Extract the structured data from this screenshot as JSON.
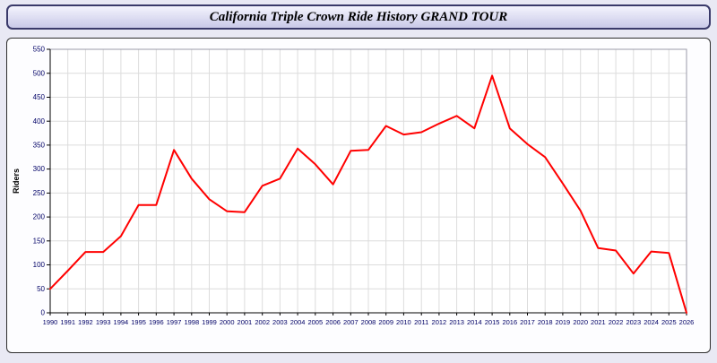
{
  "header": {
    "title": "California Triple Crown Ride History GRAND TOUR"
  },
  "colors": {
    "page_bg": "#e9e9f4",
    "line": "#ff0000",
    "grid": "#dcdcdc",
    "axis": "#000000",
    "tick_label": "#000066",
    "plot_bg": "#ffffff"
  },
  "chart_data": {
    "type": "line",
    "title": "California Triple Crown Ride History GRAND TOUR",
    "xlabel": "",
    "ylabel": "Riders",
    "ylim": [
      0,
      550
    ],
    "ytick_step": 50,
    "grid": true,
    "legend": "none",
    "line_color": "#ff0000",
    "categories": [
      "1990",
      "1991",
      "1992",
      "1993",
      "1994",
      "1995",
      "1996",
      "1997",
      "1998",
      "1999",
      "2000",
      "2001",
      "2002",
      "2003",
      "2004",
      "2005",
      "2006",
      "2007",
      "2008",
      "2009",
      "2010",
      "2011",
      "2012",
      "2013",
      "2014",
      "2015",
      "2016",
      "2017",
      "2018",
      "2019",
      "2020",
      "2021",
      "2022",
      "2023",
      "2024",
      "2025",
      "2026"
    ],
    "values": [
      50,
      88,
      127,
      127,
      160,
      225,
      225,
      340,
      280,
      237,
      212,
      210,
      265,
      280,
      343,
      310,
      268,
      338,
      340,
      390,
      372,
      377,
      395,
      411,
      385,
      495,
      385,
      352,
      325,
      270,
      213,
      135,
      130,
      82,
      128,
      125,
      0
    ]
  }
}
